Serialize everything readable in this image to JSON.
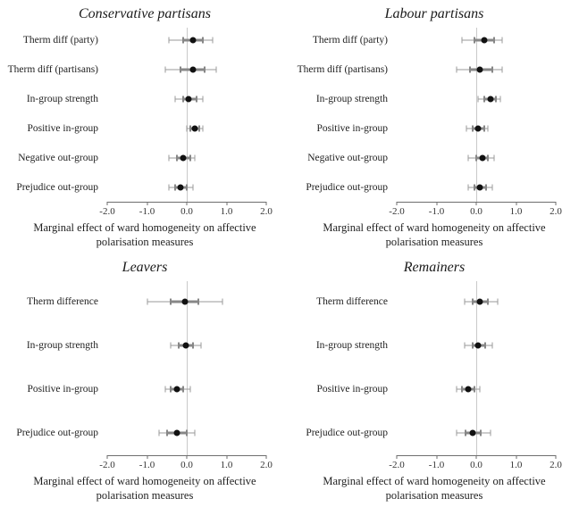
{
  "figure": {
    "background": "#ffffff",
    "point_color": "#111111",
    "ci_outer_color": "#9a9a9a",
    "ci_inner_color": "#878787",
    "axis_color": "#6e6e6e",
    "zero_line_color": "#c9c9c9"
  },
  "chart_data": [
    {
      "type": "scatter",
      "title": "Conservative partisans",
      "xlabel": [
        "Marginal effect of ward homogeneity on affective",
        "polarisation measures"
      ],
      "xlim": [
        -2.0,
        2.0
      ],
      "xticks": [
        "-2.0",
        "-1.0",
        "0.0",
        "1.0",
        "2.0"
      ],
      "xtick_values": [
        -2,
        -1,
        0,
        1,
        2
      ],
      "zero_line": true,
      "grid": false,
      "legend": "none",
      "categories": [
        "Therm diff (party)",
        "Therm diff (partisans)",
        "In-group strength",
        "Positive in-group",
        "Negative out-group",
        "Prejudice out-group"
      ],
      "points": [
        0.15,
        0.15,
        0.05,
        0.2,
        -0.1,
        -0.15
      ],
      "ci_outer": [
        [
          -0.45,
          0.65
        ],
        [
          -0.55,
          0.75
        ],
        [
          -0.3,
          0.4
        ],
        [
          0.0,
          0.4
        ],
        [
          -0.45,
          0.2
        ],
        [
          -0.45,
          0.15
        ]
      ],
      "ci_inner": [
        [
          -0.1,
          0.4
        ],
        [
          -0.15,
          0.45
        ],
        [
          -0.1,
          0.25
        ],
        [
          0.08,
          0.32
        ],
        [
          -0.25,
          0.08
        ],
        [
          -0.3,
          0.0
        ]
      ]
    },
    {
      "type": "scatter",
      "title": "Labour partisans",
      "xlabel": [
        "Marginal effect of ward homogeneity on affective",
        "polarisation measures"
      ],
      "xlim": [
        -2.0,
        2.0
      ],
      "xticks": [
        "-2.0",
        "-1.0",
        "0.0",
        "1.0",
        "2.0"
      ],
      "xtick_values": [
        -2,
        -1,
        0,
        1,
        2
      ],
      "zero_line": true,
      "grid": false,
      "legend": "none",
      "categories": [
        "Therm diff (party)",
        "Therm diff (partisans)",
        "In-group strength",
        "Positive in-group",
        "Negative out-group",
        "Prejudice out-group"
      ],
      "points": [
        0.2,
        0.1,
        0.35,
        0.05,
        0.15,
        0.1
      ],
      "ci_outer": [
        [
          -0.35,
          0.65
        ],
        [
          -0.5,
          0.65
        ],
        [
          0.05,
          0.6
        ],
        [
          -0.25,
          0.3
        ],
        [
          -0.2,
          0.45
        ],
        [
          -0.2,
          0.4
        ]
      ],
      "ci_inner": [
        [
          -0.05,
          0.45
        ],
        [
          -0.15,
          0.4
        ],
        [
          0.2,
          0.5
        ],
        [
          -0.1,
          0.2
        ],
        [
          0.0,
          0.3
        ],
        [
          -0.05,
          0.25
        ]
      ]
    },
    {
      "type": "scatter",
      "title": "Leavers",
      "xlabel": [
        "Marginal effect of ward homogeneity on affective",
        "polarisation measures"
      ],
      "xlim": [
        -2.0,
        2.0
      ],
      "xticks": [
        "-2.0",
        "-1.0",
        "0.0",
        "1.0",
        "2.0"
      ],
      "xtick_values": [
        -2,
        -1,
        0,
        1,
        2
      ],
      "zero_line": true,
      "grid": false,
      "legend": "none",
      "categories": [
        "Therm difference",
        "In-group strength",
        "Positive in-group",
        "Prejudice out-group"
      ],
      "points": [
        -0.05,
        -0.03,
        -0.25,
        -0.25
      ],
      "ci_outer": [
        [
          -1.0,
          0.9
        ],
        [
          -0.4,
          0.35
        ],
        [
          -0.55,
          0.1
        ],
        [
          -0.7,
          0.2
        ]
      ],
      "ci_inner": [
        [
          -0.4,
          0.3
        ],
        [
          -0.2,
          0.15
        ],
        [
          -0.4,
          -0.08
        ],
        [
          -0.5,
          0.0
        ]
      ]
    },
    {
      "type": "scatter",
      "title": "Remainers",
      "xlabel": [
        "Marginal effect of ward homogeneity on affective",
        "polarisation measures"
      ],
      "xlim": [
        -2.0,
        2.0
      ],
      "xticks": [
        "-2.0",
        "-1.0",
        "0.0",
        "1.0",
        "2.0"
      ],
      "xtick_values": [
        -2,
        -1,
        0,
        1,
        2
      ],
      "zero_line": true,
      "grid": false,
      "legend": "none",
      "categories": [
        "Therm difference",
        "In-group strength",
        "Positive in-group",
        "Prejudice out-group"
      ],
      "points": [
        0.08,
        0.05,
        -0.2,
        -0.08
      ],
      "ci_outer": [
        [
          -0.3,
          0.55
        ],
        [
          -0.3,
          0.4
        ],
        [
          -0.5,
          0.08
        ],
        [
          -0.5,
          0.35
        ]
      ],
      "ci_inner": [
        [
          -0.08,
          0.3
        ],
        [
          -0.1,
          0.22
        ],
        [
          -0.35,
          -0.05
        ],
        [
          -0.28,
          0.12
        ]
      ]
    }
  ]
}
